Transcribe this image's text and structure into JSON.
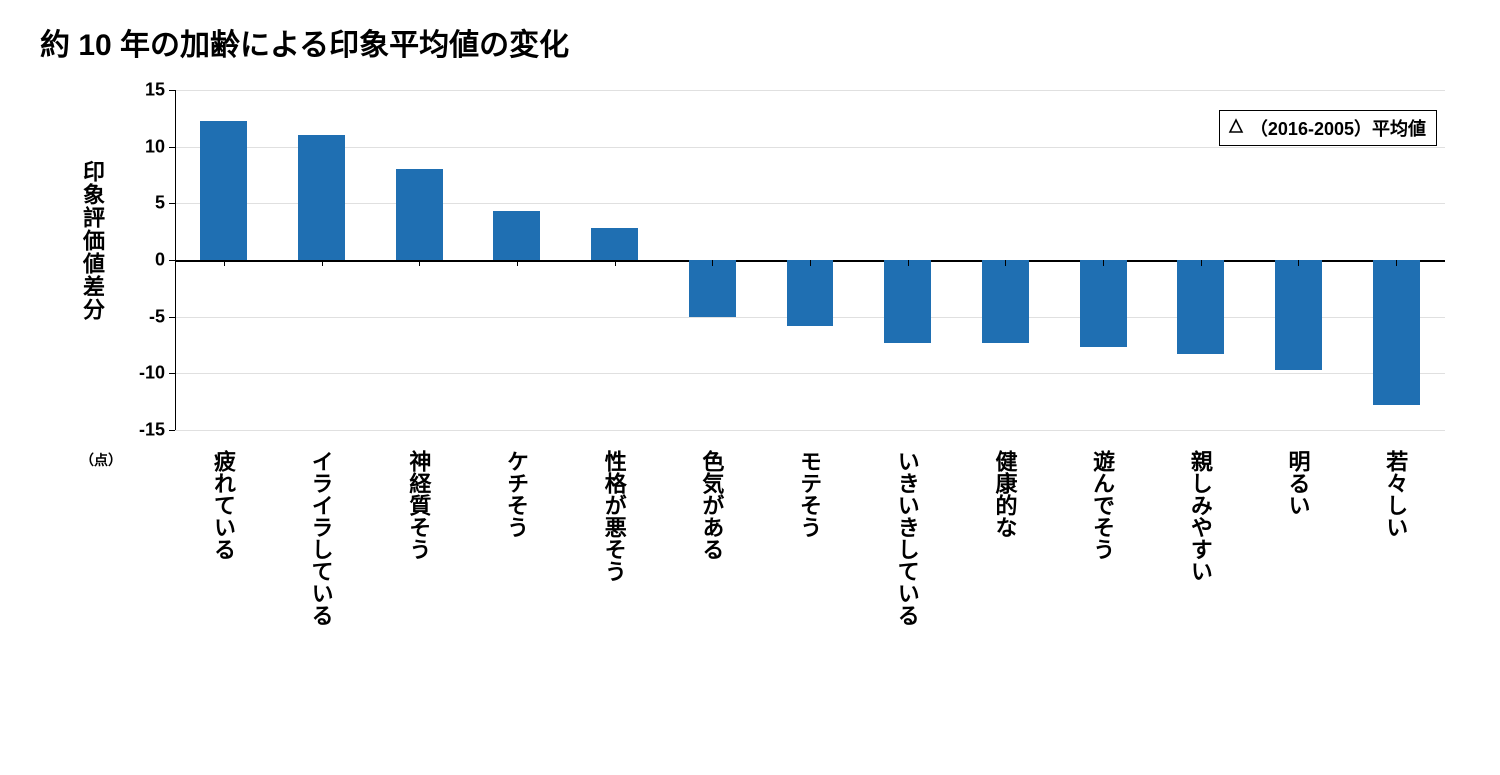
{
  "title": "約 10 年の加齢による印象平均値の変化",
  "chart": {
    "type": "bar",
    "ylabel": "印象評価値差分",
    "yunit": "（点）",
    "ylim": [
      -15,
      15
    ],
    "ytick_step": 5,
    "yticks": [
      15,
      10,
      5,
      0,
      -5,
      -10,
      -15
    ],
    "categories": [
      "疲れている",
      "イライラしている",
      "神経質そう",
      "ケチそう",
      "性格が悪そう",
      "色気がある",
      "モテそう",
      "いきいきしている",
      "健康的な",
      "遊んでそう",
      "親しみやすい",
      "明るい",
      "若々しい"
    ],
    "values": [
      12.3,
      11.0,
      8.0,
      4.3,
      2.8,
      -5.0,
      -5.8,
      -7.3,
      -7.3,
      -7.7,
      -8.3,
      -9.7,
      -12.8
    ],
    "bar_color": "#1f6fb2",
    "bar_width": 0.48,
    "background_color": "#ffffff",
    "grid_color": "#e0e0e0",
    "axis_color": "#000000",
    "title_fontsize": 30,
    "label_fontsize": 22,
    "tick_fontsize": 18,
    "legend": {
      "text": "⊿（2016-2005）平均値",
      "symbol": "⊿",
      "label": "（2016-2005）平均値",
      "border_color": "#000000",
      "position": "top-right"
    }
  }
}
